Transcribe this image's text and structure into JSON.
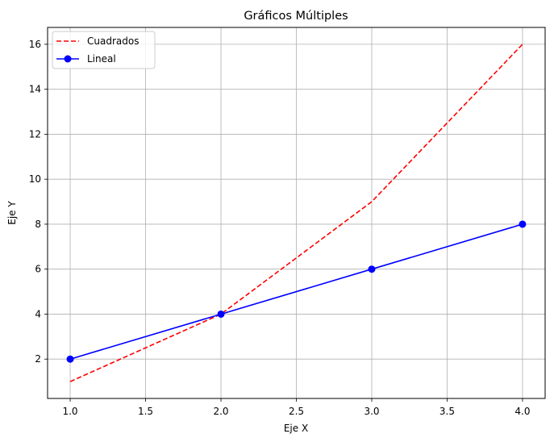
{
  "chart_data": {
    "type": "line",
    "title": "Gráficos Múltiples",
    "xlabel": "Eje X",
    "ylabel": "Eje Y",
    "xlim": [
      0.85,
      4.15
    ],
    "ylim": [
      0.25,
      16.75
    ],
    "xticks": [
      "1.0",
      "1.5",
      "2.0",
      "2.5",
      "3.0",
      "3.5",
      "4.0"
    ],
    "yticks": [
      "2",
      "4",
      "6",
      "8",
      "10",
      "12",
      "14",
      "16"
    ],
    "grid": true,
    "legend_position": "top-left",
    "series": [
      {
        "name": "Cuadrados",
        "x": [
          1,
          2,
          3,
          4
        ],
        "y": [
          1,
          4,
          9,
          16
        ],
        "color": "#ff0000",
        "style": "dashed",
        "marker": "none"
      },
      {
        "name": "Lineal",
        "x": [
          1,
          2,
          3,
          4
        ],
        "y": [
          2,
          4,
          6,
          8
        ],
        "color": "#0000ff",
        "style": "solid",
        "marker": "circle"
      }
    ]
  }
}
